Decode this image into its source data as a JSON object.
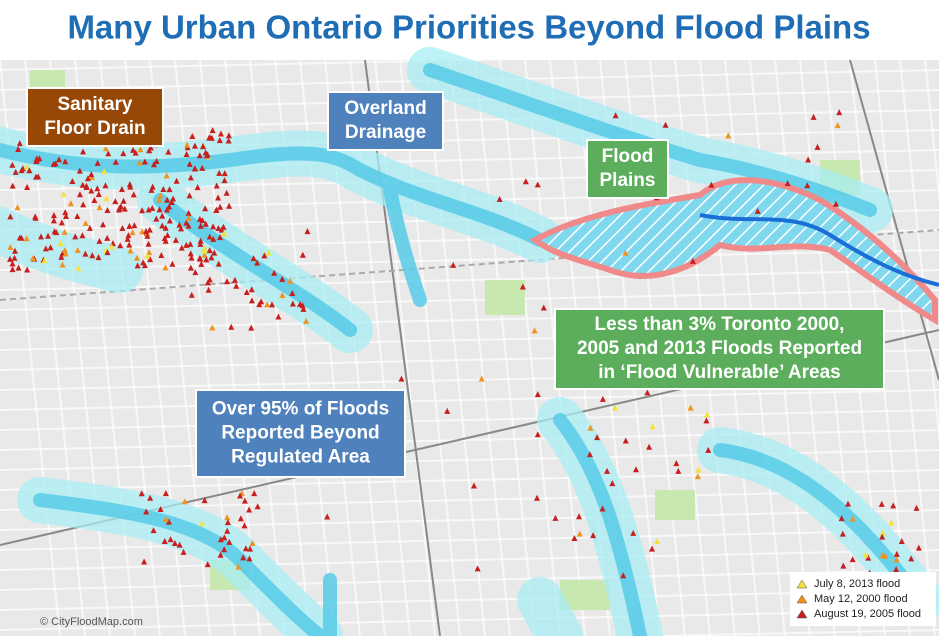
{
  "title": "Many Urban Ontario Priorities Beyond Flood Plains",
  "callouts": [
    {
      "lines": [
        "Sanitary",
        "Floor Drain"
      ],
      "color": "#974706"
    },
    {
      "lines": [
        "Overland",
        "Drainage"
      ],
      "color": "#4f81bd"
    },
    {
      "lines": [
        "Flood",
        "Plains"
      ],
      "color": "#5cae5c"
    },
    {
      "lines": [
        "Less than 3% Toronto 2000,",
        "2005 and 2013 Floods Reported",
        "in ‘Flood Vulnerable’ Areas"
      ],
      "color": "#5cae5c"
    },
    {
      "lines": [
        "Over 95% of Floods",
        "Reported Beyond",
        "Regulated Area"
      ],
      "color": "#4f81bd"
    }
  ],
  "legend": [
    {
      "label": "July 8, 2013 flood",
      "color": "#f2e23a"
    },
    {
      "label": "May 12, 2000 flood",
      "color": "#f0921e"
    },
    {
      "label": "August 19, 2005 flood",
      "color": "#c81e1e"
    }
  ],
  "credit": "© CityFloodMap.com"
}
